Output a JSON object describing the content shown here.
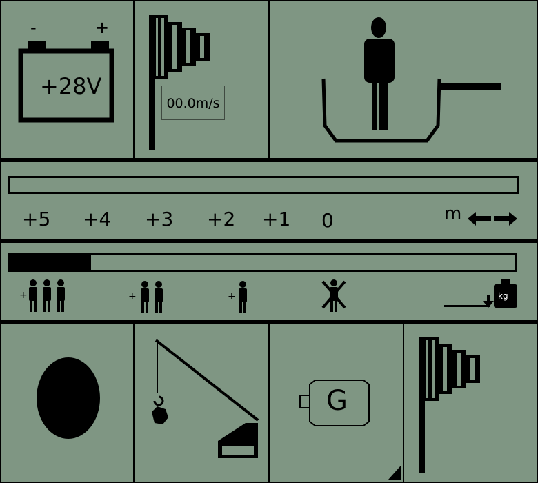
{
  "theme": {
    "panel_bg": "#7f9683",
    "ink": "#000000",
    "frame": "#000000"
  },
  "battery": {
    "minus": "-",
    "plus": "+",
    "voltage": "+28V",
    "icon": "battery-icon"
  },
  "wind": {
    "speed": "00.0m/s",
    "icon": "windsock-icon"
  },
  "platform": {
    "icon": "person-in-basket-icon"
  },
  "boom": {
    "scale_labels": [
      "+5",
      "+4",
      "+3",
      "+2",
      "+1",
      "0"
    ],
    "unit": "m",
    "arrows_icon": "left-right-arrows-icon",
    "extension_fraction": 0
  },
  "load": {
    "fill_fraction": 0.16,
    "levels": [
      {
        "prefix": "+",
        "icon": "three-persons-icon"
      },
      {
        "prefix": "+",
        "icon": "two-persons-icon"
      },
      {
        "prefix": "+",
        "icon": "one-person-icon"
      },
      {
        "prefix": "",
        "icon": "no-person-icon"
      },
      {
        "prefix": "",
        "icon": "weight-kg-icon",
        "weight_label": "kg"
      }
    ]
  },
  "status": {
    "indicator_icon": "status-oval-icon",
    "crane_icon": "crane-hook-icon",
    "generator_label": "G",
    "generator_icon": "generator-icon",
    "wind_icon": "windsock-icon"
  }
}
